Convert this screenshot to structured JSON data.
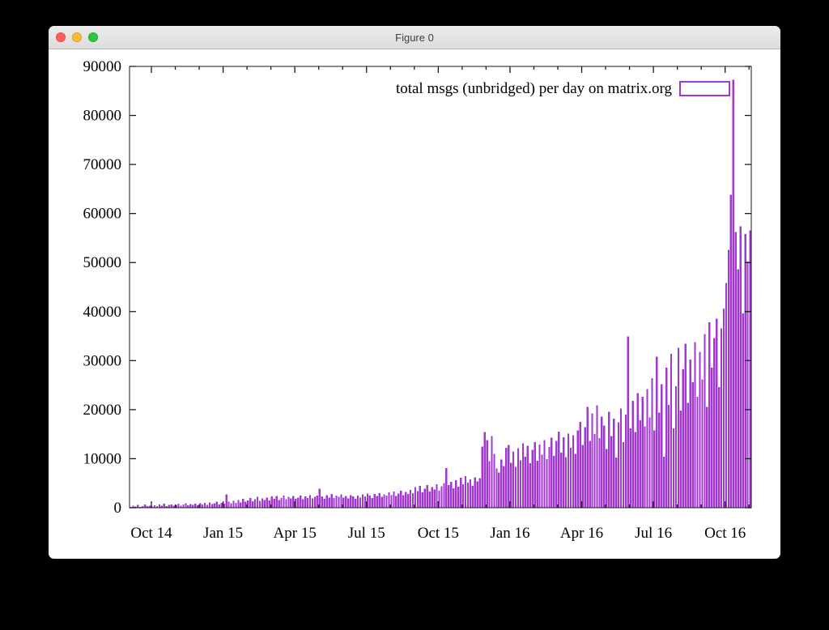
{
  "window": {
    "title": "Figure 0",
    "buttons": [
      {
        "name": "close",
        "color": "#ff5f57"
      },
      {
        "name": "minimize",
        "color": "#febc2e"
      },
      {
        "name": "zoom",
        "color": "#28c840"
      }
    ]
  },
  "chart_data": {
    "type": "bar",
    "title": "",
    "legend_label": "total msgs (unbridged) per day on matrix.org",
    "legend_position": "top-right-inside",
    "bar_color": "#a238d2",
    "frame_color": "#1a1a1a",
    "grid": false,
    "xlabel": "",
    "ylabel": "",
    "ylim": [
      0,
      90000
    ],
    "y_ticks": [
      0,
      10000,
      20000,
      30000,
      40000,
      50000,
      60000,
      70000,
      80000,
      90000
    ],
    "x_tick_labels": [
      "Oct 14",
      "Jan 15",
      "Apr 15",
      "Jul 15",
      "Oct 15",
      "Jan 16",
      "Apr 16",
      "Jul 16",
      "Oct 16"
    ],
    "x_minor_ticks": "monthly",
    "x_range_note": "daily series from early Sep 2014 to early Nov 2016, sampled every ~3 days",
    "values": [
      150,
      400,
      250,
      600,
      200,
      350,
      700,
      300,
      450,
      250,
      500,
      300,
      650,
      400,
      800,
      350,
      550,
      700,
      400,
      600,
      800,
      450,
      700,
      900,
      500,
      750,
      600,
      850,
      500,
      950,
      700,
      1000,
      600,
      1100,
      750,
      900,
      1200,
      650,
      1000,
      800,
      2700,
      1200,
      900,
      1400,
      1000,
      1600,
      1100,
      1800,
      1200,
      1500,
      2000,
      1300,
      1700,
      2200,
      1400,
      1900,
      1600,
      2100,
      1500,
      2300,
      1800,
      2400,
      1600,
      2000,
      2500,
      1700,
      2200,
      1900,
      2400,
      1800,
      2100,
      2500,
      1700,
      2300,
      2000,
      2600,
      1900,
      2200,
      2500,
      3900,
      2300,
      1800,
      2600,
      2100,
      2800,
      2000,
      2500,
      2200,
      2700,
      2100,
      2400,
      1900,
      2600,
      2300,
      1800,
      2500,
      2100,
      2700,
      2300,
      2900,
      2500,
      2000,
      2800,
      2400,
      3000,
      2200,
      2700,
      2500,
      3100,
      2600,
      3300,
      2400,
      2900,
      3500,
      2600,
      3200,
      2800,
      3600,
      3000,
      4200,
      3400,
      4500,
      3100,
      3900,
      4600,
      3300,
      4200,
      3700,
      4800,
      3500,
      4400,
      5000,
      8100,
      4600,
      5300,
      4000,
      5600,
      4300,
      6100,
      4800,
      6400,
      5100,
      5800,
      4500,
      6200,
      5400,
      6000,
      12500,
      15400,
      13800,
      9500,
      14600,
      11000,
      8000,
      7200,
      9800,
      8500,
      12200,
      12800,
      9200,
      11500,
      8300,
      12100,
      9700,
      13100,
      10400,
      12600,
      9100,
      11800,
      13400,
      9600,
      12900,
      10800,
      13800,
      9900,
      12400,
      14300,
      10600,
      13600,
      15500,
      11200,
      14400,
      10300,
      15100,
      12200,
      14800,
      11000,
      15800,
      17500,
      12800,
      16400,
      20600,
      13600,
      19200,
      15000,
      20900,
      14200,
      18600,
      16800,
      12000,
      19600,
      14600,
      18200,
      10200,
      17400,
      20200,
      13400,
      19000,
      34900,
      16200,
      21800,
      15400,
      23400,
      17800,
      22600,
      16600,
      24200,
      18400,
      26400,
      15800,
      30800,
      19400,
      25200,
      10400,
      28600,
      21000,
      31400,
      16200,
      24800,
      32600,
      19800,
      28200,
      33400,
      21400,
      30200,
      25600,
      33800,
      22600,
      31800,
      26200,
      35400,
      20600,
      37800,
      28600,
      34600,
      38600,
      24600,
      36600,
      40600,
      45800,
      52600,
      63800,
      87300,
      56200,
      48600,
      57400,
      39600,
      55800,
      50200,
      56600
    ]
  }
}
